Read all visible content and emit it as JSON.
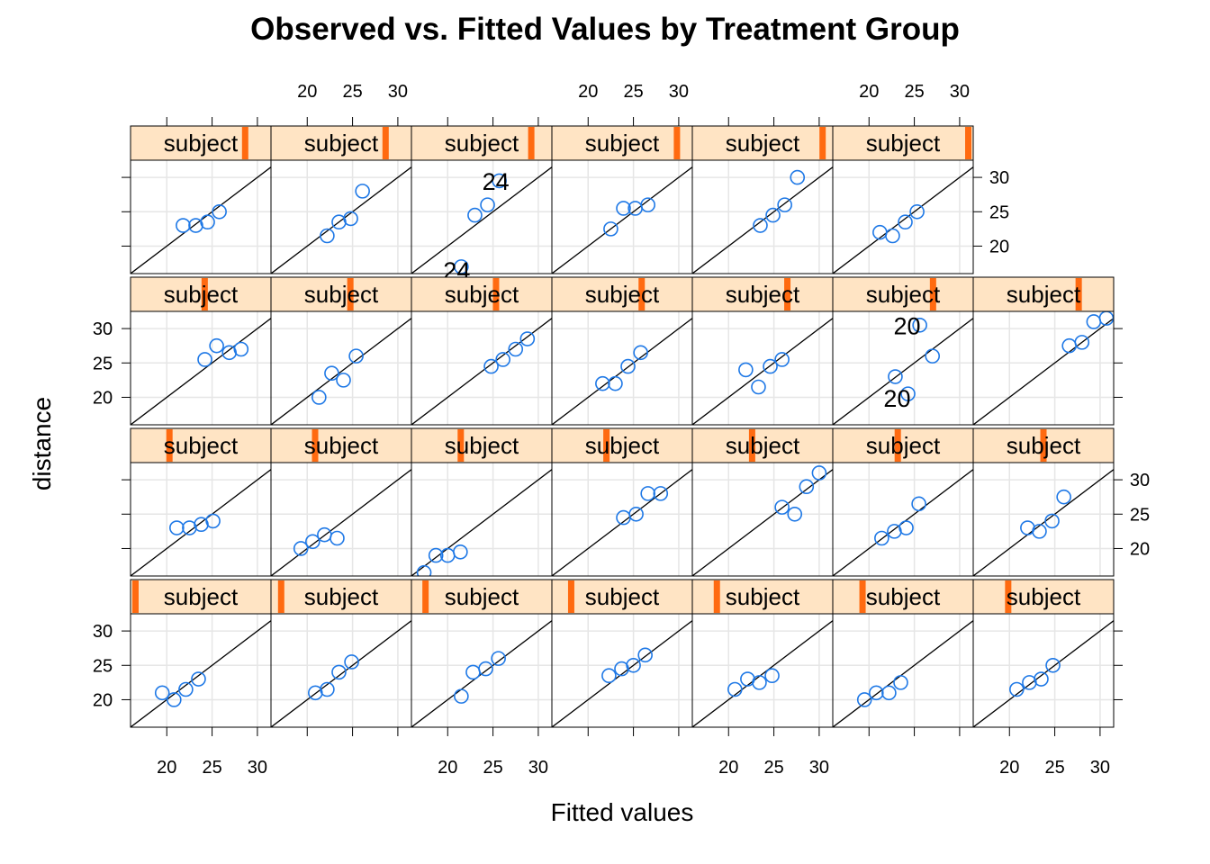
{
  "chart_data": {
    "type": "scatter",
    "title": "Observed vs. Fitted Values by Treatment Group",
    "xlabel": "Fitted values",
    "ylabel": "distance",
    "xlim": [
      16,
      31.5
    ],
    "ylim": [
      16,
      32.5
    ],
    "x_ticks": [
      20,
      25,
      30
    ],
    "y_ticks": [
      20,
      25,
      30
    ],
    "strip_label": "subject",
    "reference_line": "y = x",
    "grid": true,
    "colors": {
      "points": "#1E78E6",
      "strip_bg": "#FFE4C4",
      "strip_marker": "#FF6A10",
      "grid": "#E6E6E6",
      "line": "#000000"
    },
    "rows": [
      {
        "panels": [
          {
            "strip_level": 0.84,
            "points": [
              [
                21.8,
                23.0
              ],
              [
                23.2,
                23.0
              ],
              [
                24.5,
                23.5
              ],
              [
                25.8,
                25.0
              ]
            ]
          },
          {
            "strip_level": 0.84,
            "points": [
              [
                22.2,
                21.5
              ],
              [
                23.5,
                23.5
              ],
              [
                24.8,
                24.0
              ],
              [
                26.1,
                28.0
              ]
            ]
          },
          {
            "strip_level": 0.88,
            "points": [
              [
                21.5,
                17.0
              ],
              [
                23.0,
                24.5
              ],
              [
                24.4,
                26.0
              ],
              [
                25.7,
                29.5
              ]
            ],
            "labels": [
              {
                "text": "24",
                "x": 21.0,
                "y": 16.5
              },
              {
                "text": "24",
                "x": 25.3,
                "y": 29.5
              }
            ]
          },
          {
            "strip_level": 0.92,
            "points": [
              [
                22.5,
                22.5
              ],
              [
                23.9,
                25.5
              ],
              [
                25.2,
                25.5
              ],
              [
                26.6,
                26.0
              ]
            ]
          },
          {
            "strip_level": 0.96,
            "points": [
              [
                23.5,
                23.0
              ],
              [
                24.9,
                24.5
              ],
              [
                26.2,
                26.0
              ],
              [
                27.6,
                30.0
              ]
            ]
          },
          {
            "strip_level": 1.0,
            "points": [
              [
                21.2,
                22.0
              ],
              [
                22.6,
                21.5
              ],
              [
                24.0,
                23.5
              ],
              [
                25.3,
                25.0
              ]
            ]
          }
        ]
      },
      {
        "panels": [
          {
            "strip_level": 0.53,
            "points": [
              [
                24.2,
                25.5
              ],
              [
                25.5,
                27.5
              ],
              [
                26.9,
                26.5
              ],
              [
                28.2,
                27.0
              ]
            ]
          },
          {
            "strip_level": 0.57,
            "points": [
              [
                21.3,
                20.0
              ],
              [
                22.7,
                23.5
              ],
              [
                24.0,
                22.5
              ],
              [
                25.4,
                26.0
              ]
            ]
          },
          {
            "strip_level": 0.61,
            "points": [
              [
                24.8,
                24.5
              ],
              [
                26.1,
                25.5
              ],
              [
                27.5,
                27.0
              ],
              [
                28.8,
                28.5
              ]
            ]
          },
          {
            "strip_level": 0.65,
            "points": [
              [
                21.6,
                22.0
              ],
              [
                23.0,
                22.0
              ],
              [
                24.4,
                24.5
              ],
              [
                25.8,
                26.5
              ]
            ]
          },
          {
            "strip_level": 0.69,
            "points": [
              [
                21.9,
                24.0
              ],
              [
                23.3,
                21.5
              ],
              [
                24.6,
                24.5
              ],
              [
                25.9,
                25.5
              ]
            ]
          },
          {
            "strip_level": 0.73,
            "points": [
              [
                22.9,
                23.0
              ],
              [
                24.3,
                20.5
              ],
              [
                25.6,
                30.5
              ],
              [
                27.0,
                26.0
              ]
            ],
            "labels": [
              {
                "text": "20",
                "x": 24.2,
                "y": 30.5
              },
              {
                "text": "20",
                "x": 23.1,
                "y": 19.9
              }
            ]
          },
          {
            "strip_level": 0.77,
            "points": [
              [
                26.6,
                27.5
              ],
              [
                28.0,
                28.0
              ],
              [
                29.3,
                31.0
              ],
              [
                30.7,
                31.5
              ]
            ]
          }
        ]
      },
      {
        "panels": [
          {
            "strip_level": 0.26,
            "points": [
              [
                21.1,
                23.0
              ],
              [
                22.5,
                23.0
              ],
              [
                23.8,
                23.5
              ],
              [
                25.1,
                24.0
              ]
            ]
          },
          {
            "strip_level": 0.3,
            "points": [
              [
                19.3,
                20.0
              ],
              [
                20.6,
                21.0
              ],
              [
                21.9,
                22.0
              ],
              [
                23.3,
                21.5
              ]
            ]
          },
          {
            "strip_level": 0.34,
            "points": [
              [
                17.4,
                16.5
              ],
              [
                18.7,
                19.0
              ],
              [
                20.0,
                19.0
              ],
              [
                21.4,
                19.5
              ]
            ]
          },
          {
            "strip_level": 0.38,
            "points": [
              [
                23.9,
                24.5
              ],
              [
                25.3,
                25.0
              ],
              [
                26.6,
                28.0
              ],
              [
                28.0,
                28.0
              ]
            ]
          },
          {
            "strip_level": 0.42,
            "points": [
              [
                25.9,
                26.0
              ],
              [
                27.3,
                25.0
              ],
              [
                28.6,
                29.0
              ],
              [
                30.0,
                31.0
              ]
            ]
          },
          {
            "strip_level": 0.46,
            "points": [
              [
                21.4,
                21.5
              ],
              [
                22.8,
                22.5
              ],
              [
                24.1,
                23.0
              ],
              [
                25.5,
                26.5
              ]
            ]
          },
          {
            "strip_level": 0.5,
            "points": [
              [
                22.0,
                23.0
              ],
              [
                23.3,
                22.5
              ],
              [
                24.7,
                24.0
              ],
              [
                26.0,
                27.5
              ]
            ]
          }
        ]
      },
      {
        "panels": [
          {
            "strip_level": 0.0,
            "points": [
              [
                19.5,
                21.0
              ],
              [
                20.8,
                20.0
              ],
              [
                22.1,
                21.5
              ],
              [
                23.5,
                23.0
              ]
            ]
          },
          {
            "strip_level": 0.04,
            "points": [
              [
                20.9,
                21.0
              ],
              [
                22.2,
                21.5
              ],
              [
                23.5,
                24.0
              ],
              [
                24.9,
                25.5
              ]
            ]
          },
          {
            "strip_level": 0.07,
            "points": [
              [
                21.5,
                20.5
              ],
              [
                22.8,
                24.0
              ],
              [
                24.2,
                24.5
              ],
              [
                25.6,
                26.0
              ]
            ]
          },
          {
            "strip_level": 0.11,
            "points": [
              [
                22.3,
                23.5
              ],
              [
                23.7,
                24.5
              ],
              [
                25.0,
                25.0
              ],
              [
                26.3,
                26.5
              ]
            ]
          },
          {
            "strip_level": 0.15,
            "points": [
              [
                20.7,
                21.5
              ],
              [
                22.1,
                23.0
              ],
              [
                23.4,
                22.5
              ],
              [
                24.8,
                23.5
              ]
            ]
          },
          {
            "strip_level": 0.19,
            "points": [
              [
                19.5,
                20.0
              ],
              [
                20.8,
                21.0
              ],
              [
                22.2,
                21.0
              ],
              [
                23.5,
                22.5
              ]
            ]
          },
          {
            "strip_level": 0.23,
            "points": [
              [
                20.8,
                21.5
              ],
              [
                22.2,
                22.5
              ],
              [
                23.5,
                23.0
              ],
              [
                24.8,
                25.0
              ]
            ]
          }
        ]
      }
    ]
  }
}
